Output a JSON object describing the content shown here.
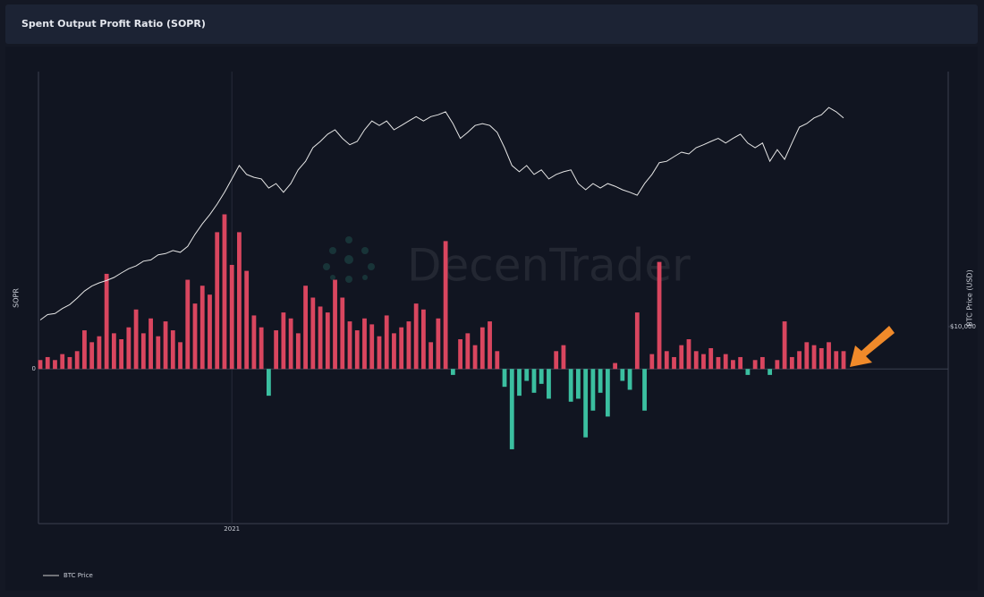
{
  "chart_data": {
    "type": "bar",
    "title": "Spent Output Profit Ratio (SOPR)",
    "y_label": "SOPR",
    "y2_label": "BTC Price (USD)",
    "watermark": "DecenTrader",
    "categories": [
      null,
      null,
      null,
      null,
      null,
      null,
      null,
      null,
      null,
      null,
      null,
      null,
      null,
      null,
      null,
      null,
      null,
      null,
      null,
      null,
      null,
      null,
      null,
      null,
      null,
      null,
      "2021",
      null,
      null,
      null,
      null,
      null,
      null,
      null,
      null,
      null,
      null,
      null,
      null,
      null,
      null,
      null,
      null,
      null,
      null,
      null,
      null,
      null,
      null,
      null,
      null,
      null,
      null,
      null,
      null,
      null,
      null,
      null,
      null,
      null,
      null,
      null,
      null,
      null,
      null,
      null,
      null,
      null,
      null,
      null,
      null,
      null,
      null,
      null,
      null,
      null,
      null,
      null,
      null,
      null,
      null,
      null,
      null,
      null,
      null,
      null,
      null,
      null,
      null,
      null,
      null,
      null,
      null,
      null,
      null,
      null,
      null,
      null,
      null,
      null,
      null,
      null,
      null,
      null,
      null,
      null,
      null,
      null,
      null,
      null
    ],
    "values": [
      0.003,
      0.004,
      0.003,
      0.005,
      0.004,
      0.006,
      0.013,
      0.009,
      0.011,
      0.032,
      0.012,
      0.01,
      0.014,
      0.02,
      0.012,
      0.017,
      0.011,
      0.016,
      0.013,
      0.009,
      0.03,
      0.022,
      0.028,
      0.025,
      0.046,
      0.052,
      0.035,
      0.046,
      0.033,
      0.018,
      0.014,
      -0.009,
      0.013,
      0.019,
      0.017,
      0.012,
      0.028,
      0.024,
      0.021,
      0.019,
      0.03,
      0.024,
      0.016,
      0.013,
      0.017,
      0.015,
      0.011,
      0.018,
      0.012,
      0.014,
      0.016,
      0.022,
      0.02,
      0.009,
      0.017,
      0.043,
      -0.002,
      0.01,
      0.012,
      0.008,
      0.014,
      0.016,
      0.006,
      -0.006,
      -0.027,
      -0.009,
      -0.004,
      -0.008,
      -0.005,
      -0.01,
      0.006,
      0.008,
      -0.011,
      -0.01,
      -0.023,
      -0.014,
      -0.008,
      -0.016,
      0.002,
      -0.004,
      -0.007,
      0.019,
      -0.014,
      0.005,
      0.036,
      0.006,
      0.004,
      0.008,
      0.01,
      0.006,
      0.005,
      0.007,
      0.004,
      0.005,
      0.003,
      0.004,
      -0.002,
      0.003,
      0.004,
      -0.002,
      0.003,
      0.016,
      0.004,
      0.006,
      0.009,
      0.008,
      0.007,
      0.009,
      0.006,
      0.006
    ],
    "positive_color": "#d9465f",
    "negative_color": "#3bbfa0",
    "series": [
      {
        "name": "BTC Price",
        "color": "#e6e6e6",
        "axis": "y2",
        "values": [
          10600,
          11100,
          11200,
          11700,
          12100,
          12800,
          13600,
          14200,
          14600,
          14900,
          15300,
          15900,
          16500,
          16900,
          17600,
          17800,
          18600,
          18800,
          19300,
          19000,
          20000,
          22200,
          24300,
          26300,
          28800,
          31900,
          35800,
          40200,
          37200,
          36300,
          35800,
          33100,
          34400,
          31900,
          34400,
          38700,
          41700,
          46900,
          49500,
          52700,
          54700,
          50800,
          48100,
          49500,
          54700,
          59000,
          56800,
          59000,
          54700,
          56800,
          59000,
          61300,
          59000,
          61300,
          62300,
          63900,
          57700,
          50800,
          53500,
          56800,
          57700,
          56800,
          53500,
          46900,
          40200,
          38100,
          40200,
          37200,
          38700,
          35800,
          37200,
          38100,
          38700,
          34400,
          32600,
          34400,
          33100,
          34400,
          33600,
          32600,
          31900,
          31100,
          34400,
          37200,
          41200,
          41700,
          43400,
          45100,
          44400,
          46900,
          48100,
          49500,
          50800,
          48800,
          50800,
          52700,
          48800,
          46900,
          48800,
          41700,
          46100,
          42400,
          48800,
          56000,
          57700,
          60600,
          62300,
          66300,
          63900,
          60600
        ]
      }
    ],
    "ylim": [
      -0.052,
      0.1
    ],
    "yticks": [
      0
    ],
    "y2lim": [
      1828,
      90400
    ],
    "y2log": true,
    "y2ticks": [
      {
        "value": 10000,
        "label": "$10,000"
      }
    ]
  }
}
